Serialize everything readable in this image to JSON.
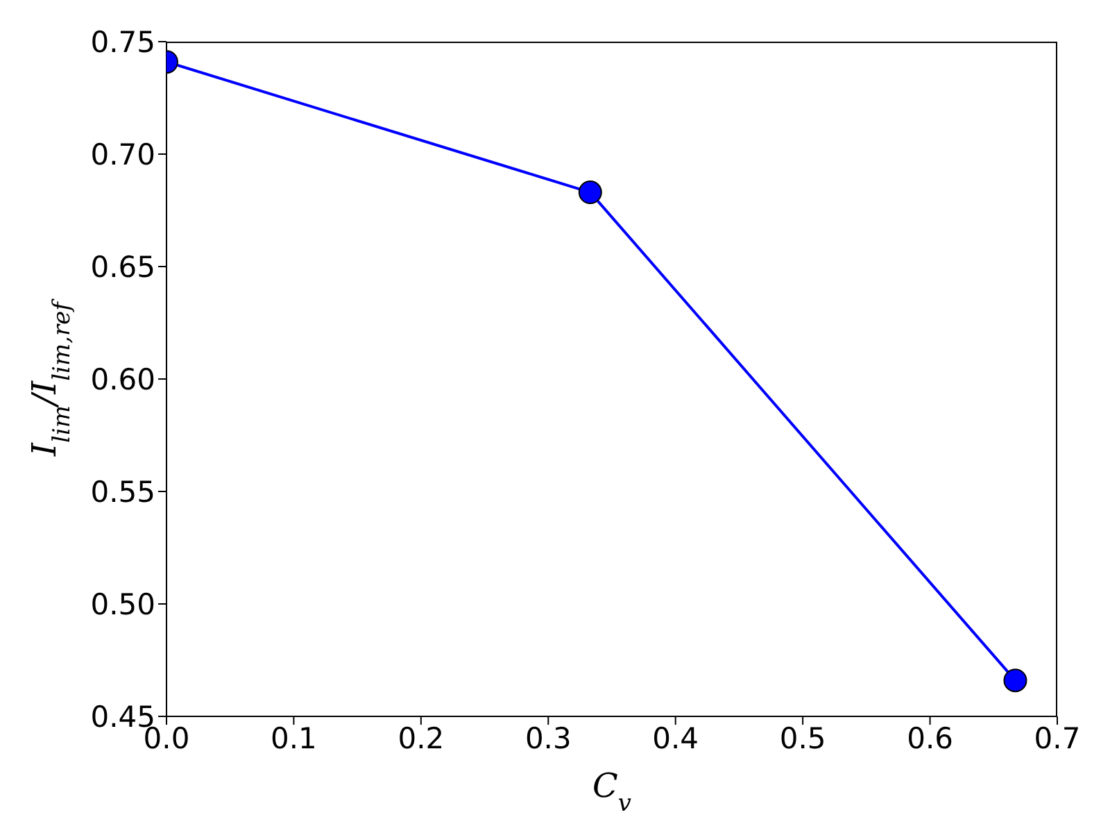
{
  "chart_data": {
    "type": "line",
    "xlabel": "C$_{v}$",
    "ylabel": "I$_{lim}$/I$_{lim,ref}$",
    "x": [
      0,
      0.333,
      0.667
    ],
    "series": [
      {
        "color": "#0000ff",
        "values": [
          0.741,
          0.683,
          0.466
        ]
      }
    ],
    "xlim": [
      0,
      0.7
    ],
    "xticks": [
      {
        "value": 0,
        "label": "0.0"
      },
      0.1,
      0.2,
      0.3,
      0.4,
      0.5,
      0.6,
      0.7
    ],
    "ylim": [
      0.45,
      0.75
    ],
    "yticks": [
      0.45,
      {
        "value": 0.5,
        "label": "0.50"
      },
      0.55,
      {
        "value": 0.6,
        "label": "0.60"
      },
      0.65,
      {
        "value": 0.7,
        "label": "0.70"
      },
      0.75
    ],
    "grid": false,
    "legend": false,
    "marker": "circle",
    "line_style": "solid"
  }
}
